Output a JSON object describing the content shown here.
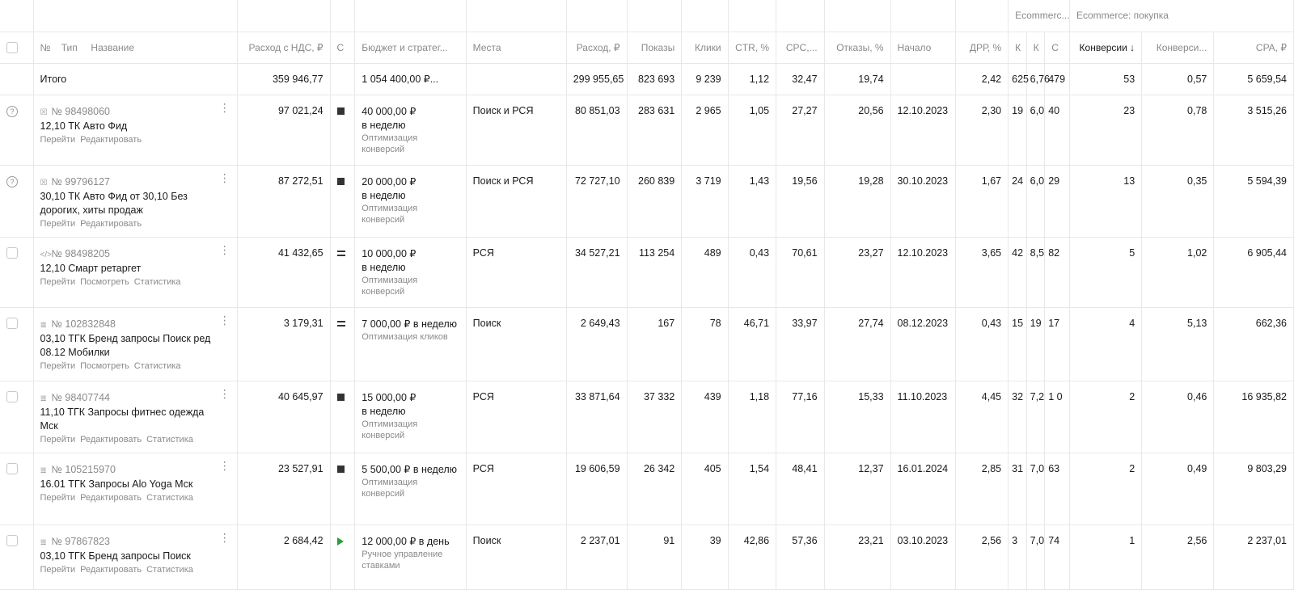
{
  "group_headers": {
    "ecommerce_short": "Ecommerc...",
    "ecommerce_purchase": "Ecommerce: покупка"
  },
  "columns": {
    "num": "№",
    "type": "Тип",
    "name": "Название",
    "spend_vat": "Расход с НДС, ₽",
    "status": "С",
    "budget": "Бюджет и стратег...",
    "places": "Места",
    "spend": "Расход, ₽",
    "impressions": "Показы",
    "clicks": "Клики",
    "ctr": "CTR, %",
    "cpc": "CPC,...",
    "bounces": "Отказы, %",
    "start": "Начало",
    "drr": "ДРР, %",
    "ec1": "К",
    "ec2": "К",
    "ec3": "С",
    "conversions": "Конверсии ↓",
    "conv_rate": "Конверси...",
    "cpa": "CPA, ₽"
  },
  "total": {
    "label": "Итого",
    "spend_vat": "359 946,77",
    "budget": "1 054 400,00 ₽...",
    "spend": "299 955,65",
    "impressions": "823 693",
    "clicks": "9 239",
    "ctr": "1,12",
    "cpc": "32,47",
    "bounces": "19,74",
    "drr": "2,42",
    "ec1": "625",
    "ec2": "6,76",
    "ec3": "479",
    "conversions": "53",
    "conv_rate": "0,57",
    "cpa": "5 659,54"
  },
  "rows": [
    {
      "lead": "help",
      "type_icon": "cart",
      "id": "№ 98498060",
      "name": "12,10 ТК Авто Фид",
      "links": [
        "Перейти",
        "Редактировать"
      ],
      "spend_vat": "97 021,24",
      "status": "stop",
      "budget_amount": "40 000,00 ₽",
      "budget_period": "в неделю",
      "strategy": "Оптимизация конверсий",
      "places": "Поиск и РСЯ",
      "spend": "80 851,03",
      "impressions": "283 631",
      "clicks": "2 965",
      "ctr": "1,05",
      "cpc": "27,27",
      "bounces": "20,56",
      "start": "12.10.2023",
      "drr": "2,30",
      "ec1": "19",
      "ec2": "6,0",
      "ec3": "40",
      "conversions": "23",
      "conv_rate": "0,78",
      "cpa": "3 515,26"
    },
    {
      "lead": "help",
      "type_icon": "cart",
      "id": "№ 99796127",
      "name": "30,10 ТК Авто Фид от 30,10 Без дорогих, хиты продаж",
      "links": [
        "Перейти",
        "Редактировать"
      ],
      "spend_vat": "87 272,51",
      "status": "stop",
      "budget_amount": "20 000,00 ₽",
      "budget_period": "в неделю",
      "strategy": "Оптимизация конверсий",
      "places": "Поиск и РСЯ",
      "spend": "72 727,10",
      "impressions": "260 839",
      "clicks": "3 719",
      "ctr": "1,43",
      "cpc": "19,56",
      "bounces": "19,28",
      "start": "30.10.2023",
      "drr": "1,67",
      "ec1": "24",
      "ec2": "6,0",
      "ec3": "29",
      "conversions": "13",
      "conv_rate": "0,35",
      "cpa": "5 594,39"
    },
    {
      "lead": "check",
      "type_icon": "code",
      "id": "№ 98498205",
      "name": "12,10 Смарт ретаргет",
      "links": [
        "Перейти",
        "Посмотреть",
        "Статистика"
      ],
      "spend_vat": "41 432,65",
      "status": "eq",
      "budget_amount": "10 000,00 ₽",
      "budget_period": "в неделю",
      "strategy": "Оптимизация конверсий",
      "places": "РСЯ",
      "spend": "34 527,21",
      "impressions": "113 254",
      "clicks": "489",
      "ctr": "0,43",
      "cpc": "70,61",
      "bounces": "23,27",
      "start": "12.10.2023",
      "drr": "3,65",
      "ec1": "42",
      "ec2": "8,5",
      "ec3": "82",
      "conversions": "5",
      "conv_rate": "1,02",
      "cpa": "6 905,44"
    },
    {
      "lead": "check",
      "type_icon": "text",
      "id": "№ 102832848",
      "name": "03,10 ТГК Бренд запросы Поиск ред 08.12 Мобилки",
      "links": [
        "Перейти",
        "Посмотреть",
        "Статистика"
      ],
      "spend_vat": "3 179,31",
      "status": "eq",
      "budget_amount": "7 000,00 ₽ в неделю",
      "budget_period": "",
      "strategy": "Оптимизация кликов",
      "places": "Поиск",
      "spend": "2 649,43",
      "impressions": "167",
      "clicks": "78",
      "ctr": "46,71",
      "cpc": "33,97",
      "bounces": "27,74",
      "start": "08.12.2023",
      "drr": "0,43",
      "ec1": "15",
      "ec2": "19",
      "ec3": "17",
      "conversions": "4",
      "conv_rate": "5,13",
      "cpa": "662,36"
    },
    {
      "lead": "check",
      "type_icon": "text",
      "id": "№ 98407744",
      "name": "11,10 ТГК Запросы фитнес одежда Мск",
      "links": [
        "Перейти",
        "Редактировать",
        "Статистика"
      ],
      "spend_vat": "40 645,97",
      "status": "stop",
      "budget_amount": "15 000,00 ₽",
      "budget_period": "в неделю",
      "strategy": "Оптимизация конверсий",
      "places": "РСЯ",
      "spend": "33 871,64",
      "impressions": "37 332",
      "clicks": "439",
      "ctr": "1,18",
      "cpc": "77,16",
      "bounces": "15,33",
      "start": "11.10.2023",
      "drr": "4,45",
      "ec1": "32",
      "ec2": "7,2",
      "ec3": "1 0",
      "conversions": "2",
      "conv_rate": "0,46",
      "cpa": "16 935,82"
    },
    {
      "lead": "check",
      "type_icon": "text",
      "id": "№ 105215970",
      "name": "16.01 ТГК Запросы Alo Yoga Мск",
      "links": [
        "Перейти",
        "Редактировать",
        "Статистика"
      ],
      "spend_vat": "23 527,91",
      "status": "stop",
      "budget_amount": "5 500,00 ₽ в неделю",
      "budget_period": "",
      "strategy": "Оптимизация конверсий",
      "places": "РСЯ",
      "spend": "19 606,59",
      "impressions": "26 342",
      "clicks": "405",
      "ctr": "1,54",
      "cpc": "48,41",
      "bounces": "12,37",
      "start": "16.01.2024",
      "drr": "2,85",
      "ec1": "31",
      "ec2": "7,0",
      "ec3": "63",
      "conversions": "2",
      "conv_rate": "0,49",
      "cpa": "9 803,29"
    },
    {
      "lead": "check",
      "type_icon": "text",
      "id": "№ 97867823",
      "name": "03,10 ТГК Бренд запросы Поиск",
      "links": [
        "Перейти",
        "Редактировать",
        "Статистика"
      ],
      "spend_vat": "2 684,42",
      "status": "play",
      "budget_amount": "12 000,00 ₽ в день",
      "budget_period": "",
      "strategy": "Ручное управление ставками",
      "places": "Поиск",
      "spend": "2 237,01",
      "impressions": "91",
      "clicks": "39",
      "ctr": "42,86",
      "cpc": "57,36",
      "bounces": "23,21",
      "start": "03.10.2023",
      "drr": "2,56",
      "ec1": "3",
      "ec2": "7,0",
      "ec3": "74",
      "conversions": "1",
      "conv_rate": "2,56",
      "cpa": "2 237,01"
    }
  ]
}
